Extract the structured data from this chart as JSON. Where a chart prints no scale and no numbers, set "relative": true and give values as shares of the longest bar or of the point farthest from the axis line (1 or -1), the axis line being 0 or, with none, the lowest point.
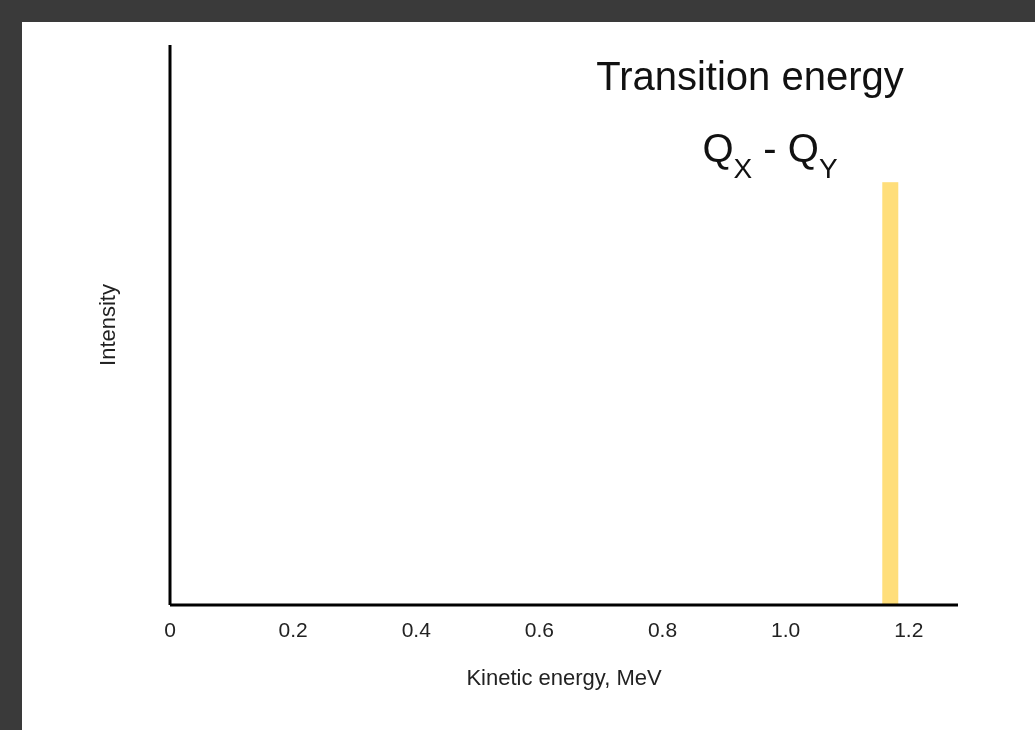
{
  "chart_data": {
    "type": "bar",
    "relative": true,
    "x": [
      1.17
    ],
    "series": [
      {
        "color": "#ffde7a",
        "values": [
          1
        ]
      }
    ],
    "xlim": [
      0,
      1.28
    ],
    "xticks": [
      0,
      0.2,
      0.4,
      0.6,
      0.8,
      {
        "value": 1.0,
        "label": "1.0"
      },
      1.2
    ],
    "xlabel": "Kinetic energy, MeV",
    "ylabel": "Intensity",
    "annotations": [
      "Transition energy",
      "Q$_{X}$ - Q$_{Y}$"
    ]
  }
}
